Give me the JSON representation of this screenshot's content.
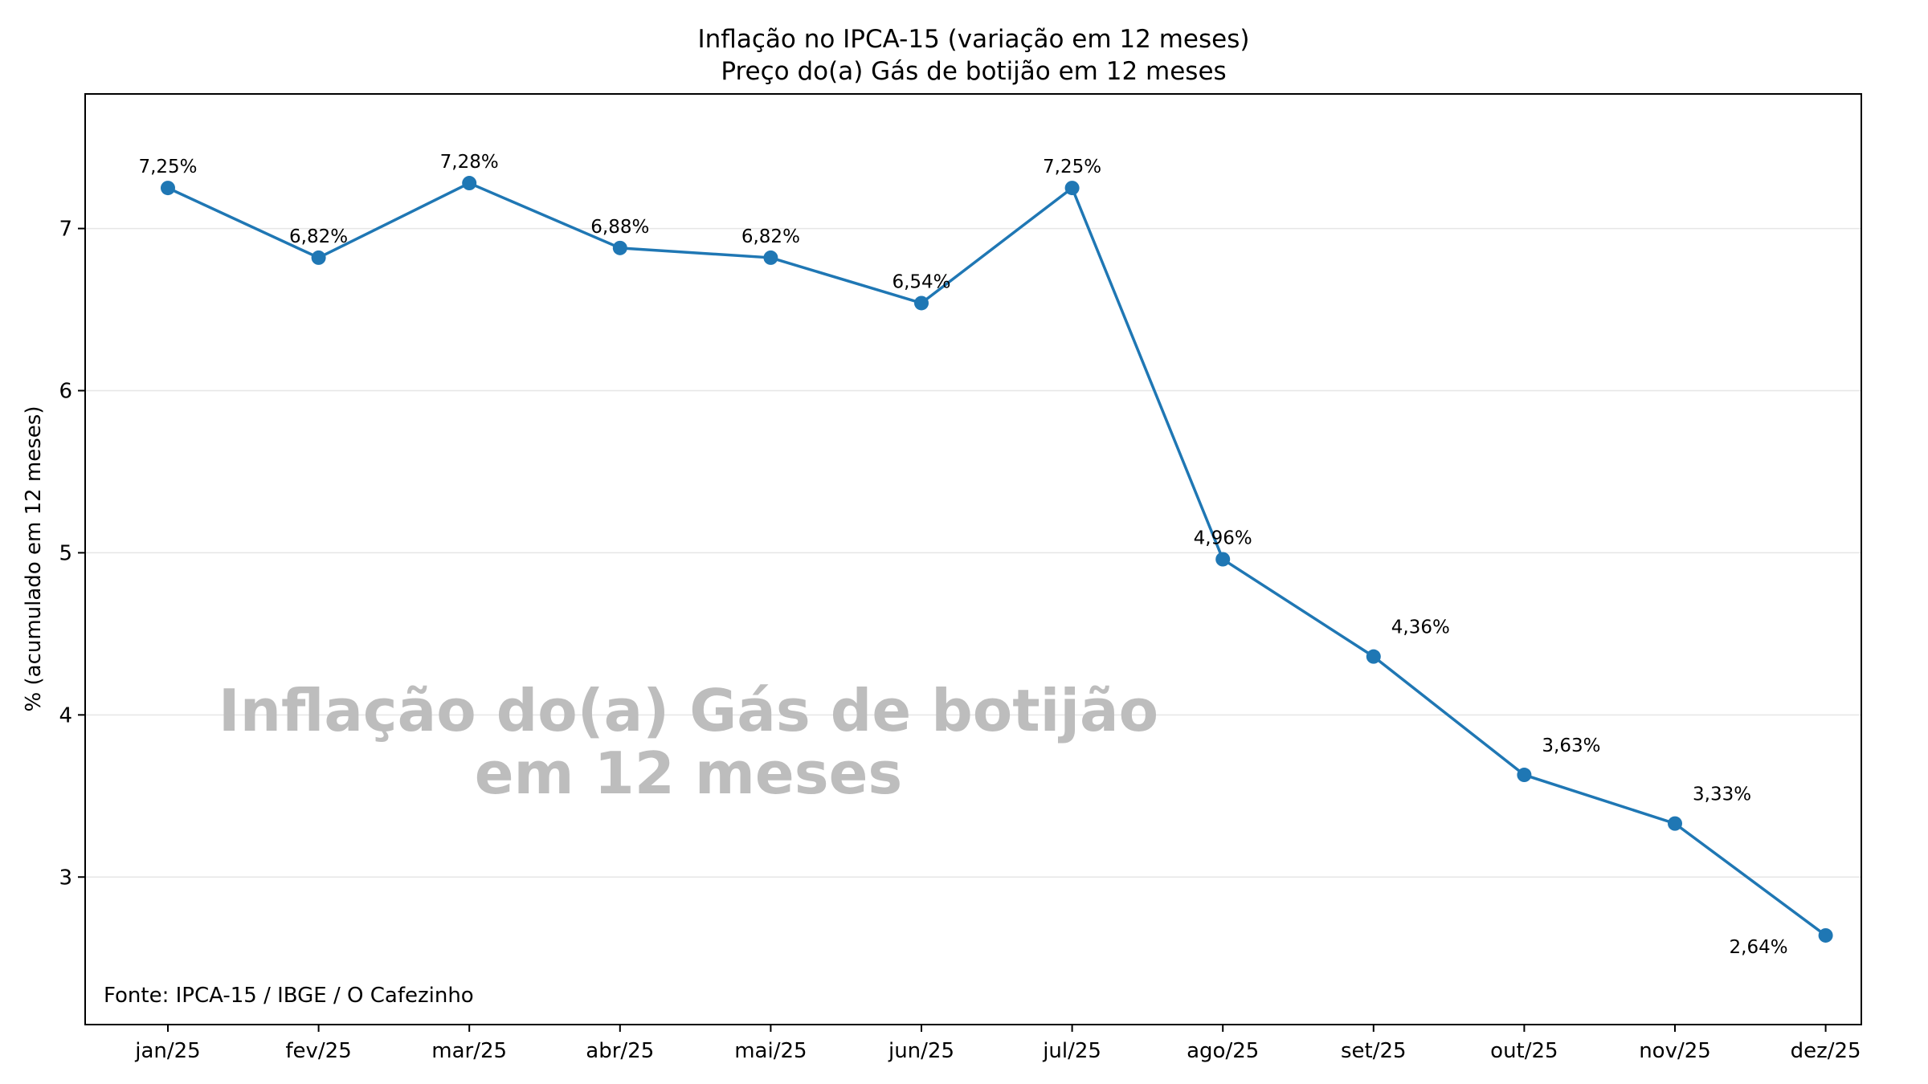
{
  "chart_data": {
    "type": "line",
    "title": "Inflação no IPCA-15 (variação em 12 meses)",
    "subtitle": "Preço do(a) Gás de botijão em 12 meses",
    "xlabel": "",
    "ylabel": "% (acumulado em 12 meses)",
    "categories": [
      "jan/25",
      "fev/25",
      "mar/25",
      "abr/25",
      "mai/25",
      "jun/25",
      "jul/25",
      "ago/25",
      "set/25",
      "out/25",
      "nov/25",
      "dez/25"
    ],
    "series": [
      {
        "values": [
          7.25,
          6.82,
          7.28,
          6.88,
          6.82,
          6.54,
          7.25,
          4.96,
          4.36,
          3.63,
          3.33,
          2.64
        ],
        "labels": [
          "7,25%",
          "6,82%",
          "7,28%",
          "6,88%",
          "6,82%",
          "6,54%",
          "7,25%",
          "4,96%",
          "4,36%",
          "3,63%",
          "3,33%",
          "2,64%"
        ],
        "color": "#1f77b4"
      }
    ],
    "yticks": [
      3,
      4,
      5,
      6,
      7
    ],
    "ytick_labels": [
      "3",
      "4",
      "5",
      "6",
      "7"
    ],
    "ylim": [
      2.09,
      7.83
    ],
    "grid": "horizontal",
    "legend": "none",
    "watermark": [
      "Inflação do(a) Gás de botijão",
      "em 12 meses"
    ],
    "source_note": "Fonte: IPCA-15 / IBGE / O Cafezinho"
  }
}
